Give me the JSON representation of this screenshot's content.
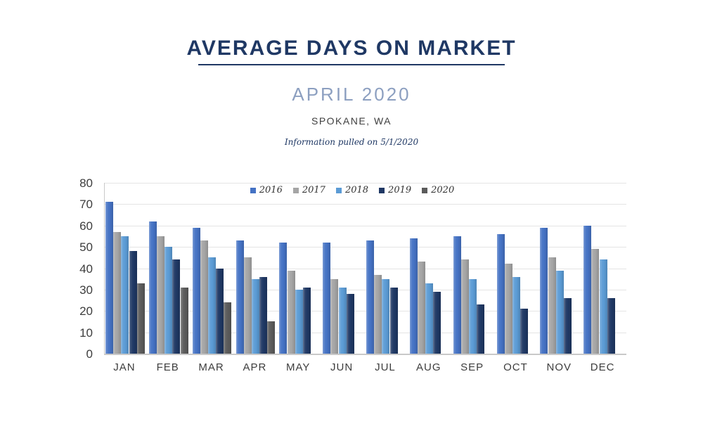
{
  "header": {
    "title": "AVERAGE DAYS ON MARKET",
    "subtitle": "APRIL 2020",
    "location": "SPOKANE, WA",
    "footnote": "Information pulled on 5/1/2020"
  },
  "colors": {
    "title_navy": "#1F3864",
    "subtitle_blue": "#8C9FC0",
    "location_gray": "#3F3F3F",
    "gridline": "#E4E4E4",
    "axis_line": "#C9C9C9",
    "axis_label": "#3D3D3D",
    "legend_text": "#333333"
  },
  "chart_data": {
    "type": "bar",
    "title": "Average Days on Market by month and year",
    "xlabel": "",
    "ylabel": "",
    "ylim": [
      0,
      80
    ],
    "ytick_step": 10,
    "grid": true,
    "legend_position": "top-center",
    "categories": [
      "JAN",
      "FEB",
      "MAR",
      "APR",
      "MAY",
      "JUN",
      "JUL",
      "AUG",
      "SEP",
      "OCT",
      "NOV",
      "DEC"
    ],
    "series": [
      {
        "name": "2016",
        "color": "#4472C4",
        "values": [
          71,
          62,
          59,
          53,
          52,
          52,
          53,
          54,
          55,
          56,
          59,
          60
        ]
      },
      {
        "name": "2017",
        "color": "#A5A5A5",
        "values": [
          57,
          55,
          53,
          45,
          39,
          35,
          37,
          43,
          44,
          42,
          45,
          49
        ]
      },
      {
        "name": "2018",
        "color": "#5B9BD5",
        "values": [
          55,
          50,
          45,
          35,
          30,
          31,
          35,
          33,
          35,
          36,
          39,
          44
        ]
      },
      {
        "name": "2019",
        "color": "#1F3864",
        "values": [
          48,
          44,
          40,
          36,
          31,
          28,
          31,
          29,
          23,
          21,
          26,
          26
        ]
      },
      {
        "name": "2020",
        "color": "#5B5B5B",
        "values": [
          33,
          31,
          24,
          15,
          null,
          null,
          null,
          null,
          null,
          null,
          null,
          null
        ]
      }
    ]
  }
}
